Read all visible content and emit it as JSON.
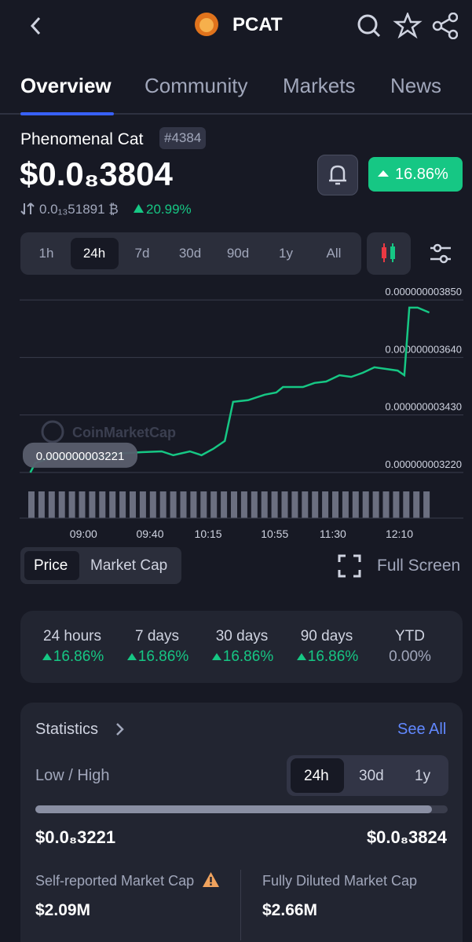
{
  "header": {
    "title": "PCAT"
  },
  "tabs": [
    "Overview",
    "Community",
    "Markets",
    "News"
  ],
  "coin": {
    "name": "Phenomenal Cat",
    "rank": "#4384",
    "price": "$0.0₈3804",
    "change": "16.86%",
    "btc_price": "0.0₁₃51891 ₿",
    "btc_change": "20.99%"
  },
  "ranges": [
    "1h",
    "24h",
    "7d",
    "30d",
    "90d",
    "1y",
    "All"
  ],
  "chart_data": {
    "type": "line",
    "brand": "CoinMarketCap",
    "annotation": "0.000000003221",
    "color": "#16c784",
    "x": [
      508,
      511,
      518,
      527,
      542,
      552,
      561,
      575,
      587,
      594,
      604,
      611,
      618,
      625,
      630,
      639,
      649,
      656,
      660,
      672,
      679,
      686,
      694,
      701,
      708,
      715,
      722,
      729,
      733,
      736,
      741,
      748
    ],
    "values": [
      3.22e-09,
      3.254e-09,
      3.269e-09,
      3.277e-09,
      3.274e-09,
      3.277e-09,
      3.289e-09,
      3.294e-09,
      3.297e-09,
      3.283e-09,
      3.297e-09,
      3.283e-09,
      3.306e-09,
      3.335e-09,
      3.478e-09,
      3.484e-09,
      3.504e-09,
      3.512e-09,
      3.532e-09,
      3.532e-09,
      3.547e-09,
      3.552e-09,
      3.575e-09,
      3.569e-09,
      3.584e-09,
      3.604e-09,
      3.598e-09,
      3.592e-09,
      3.575e-09,
      3.822e-09,
      3.822e-09,
      3.804e-09
    ],
    "xlim": [
      503,
      760
    ],
    "xticks": [
      {
        "value": 540,
        "label": "09:00"
      },
      {
        "value": 580,
        "label": "09:40"
      },
      {
        "value": 615,
        "label": "10:15"
      },
      {
        "value": 655,
        "label": "10:55"
      },
      {
        "value": 690,
        "label": "11:30"
      },
      {
        "value": 730,
        "label": "12:10"
      }
    ],
    "ylim": [
      3.211e-09,
      3.899e-09
    ],
    "yticks": [
      {
        "value": 3.85e-09,
        "label": "0.000000003850"
      },
      {
        "value": 3.64e-09,
        "label": "0.000000003640"
      },
      {
        "value": 3.43e-09,
        "label": "0.000000003430"
      },
      {
        "value": 3.22e-09,
        "label": "0.000000003220"
      }
    ]
  },
  "chart_toggle": [
    "Price",
    "Market Cap"
  ],
  "full_screen": "Full Screen",
  "performance": [
    {
      "label": "24 hours",
      "value": "16.86%"
    },
    {
      "label": "7 days",
      "value": "16.86%"
    },
    {
      "label": "30 days",
      "value": "16.86%"
    },
    {
      "label": "90 days",
      "value": "16.86%"
    },
    {
      "label": "YTD",
      "value": "0.00%"
    }
  ],
  "statistics": {
    "title": "Statistics",
    "see_all": "See All",
    "low_high": "Low / High",
    "ranges": [
      "24h",
      "30d",
      "1y"
    ],
    "low": "$0.0₈3221",
    "high": "$0.0₈3824",
    "self_cap_label": "Self-reported Market Cap",
    "self_cap": "$2.09M",
    "fdv_label": "Fully Diluted Market Cap",
    "fdv": "$2.66M"
  }
}
